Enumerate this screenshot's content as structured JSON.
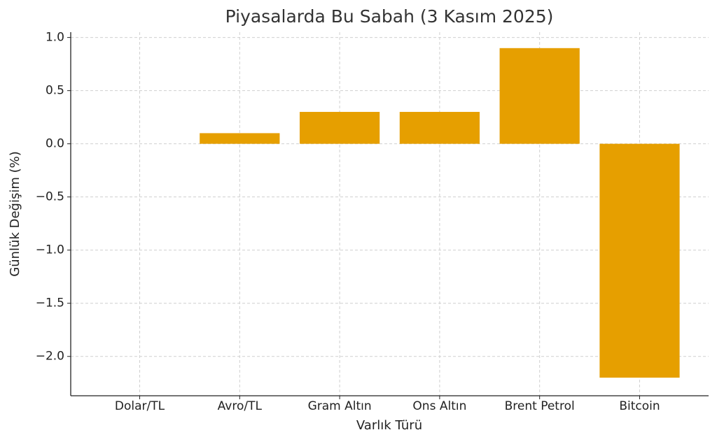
{
  "chart_data": {
    "type": "bar",
    "title": "Piyasalarda Bu Sabah (3 Kasım 2025)",
    "xlabel": "Varlık Türü",
    "ylabel": "Günlük Değişim (%)",
    "categories": [
      "Dolar/TL",
      "Avro/TL",
      "Gram Altın",
      "Ons Altın",
      "Brent Petrol",
      "Bitcoin"
    ],
    "values": [
      0,
      0.1,
      0.3,
      0.3,
      0.9,
      -2.2
    ],
    "color": "#e69f00",
    "ylim": [
      -2.37,
      1.05
    ],
    "yticks": [
      {
        "value": 1,
        "label": "1.0"
      },
      0.5,
      {
        "value": 0,
        "label": "0.0"
      },
      {
        "value": -0.5,
        "label": "−0.5"
      },
      {
        "value": -1,
        "label": "−1.0"
      },
      {
        "value": -1.5,
        "label": "−1.5"
      },
      {
        "value": -2,
        "label": "−2.0"
      }
    ],
    "grid": true
  }
}
